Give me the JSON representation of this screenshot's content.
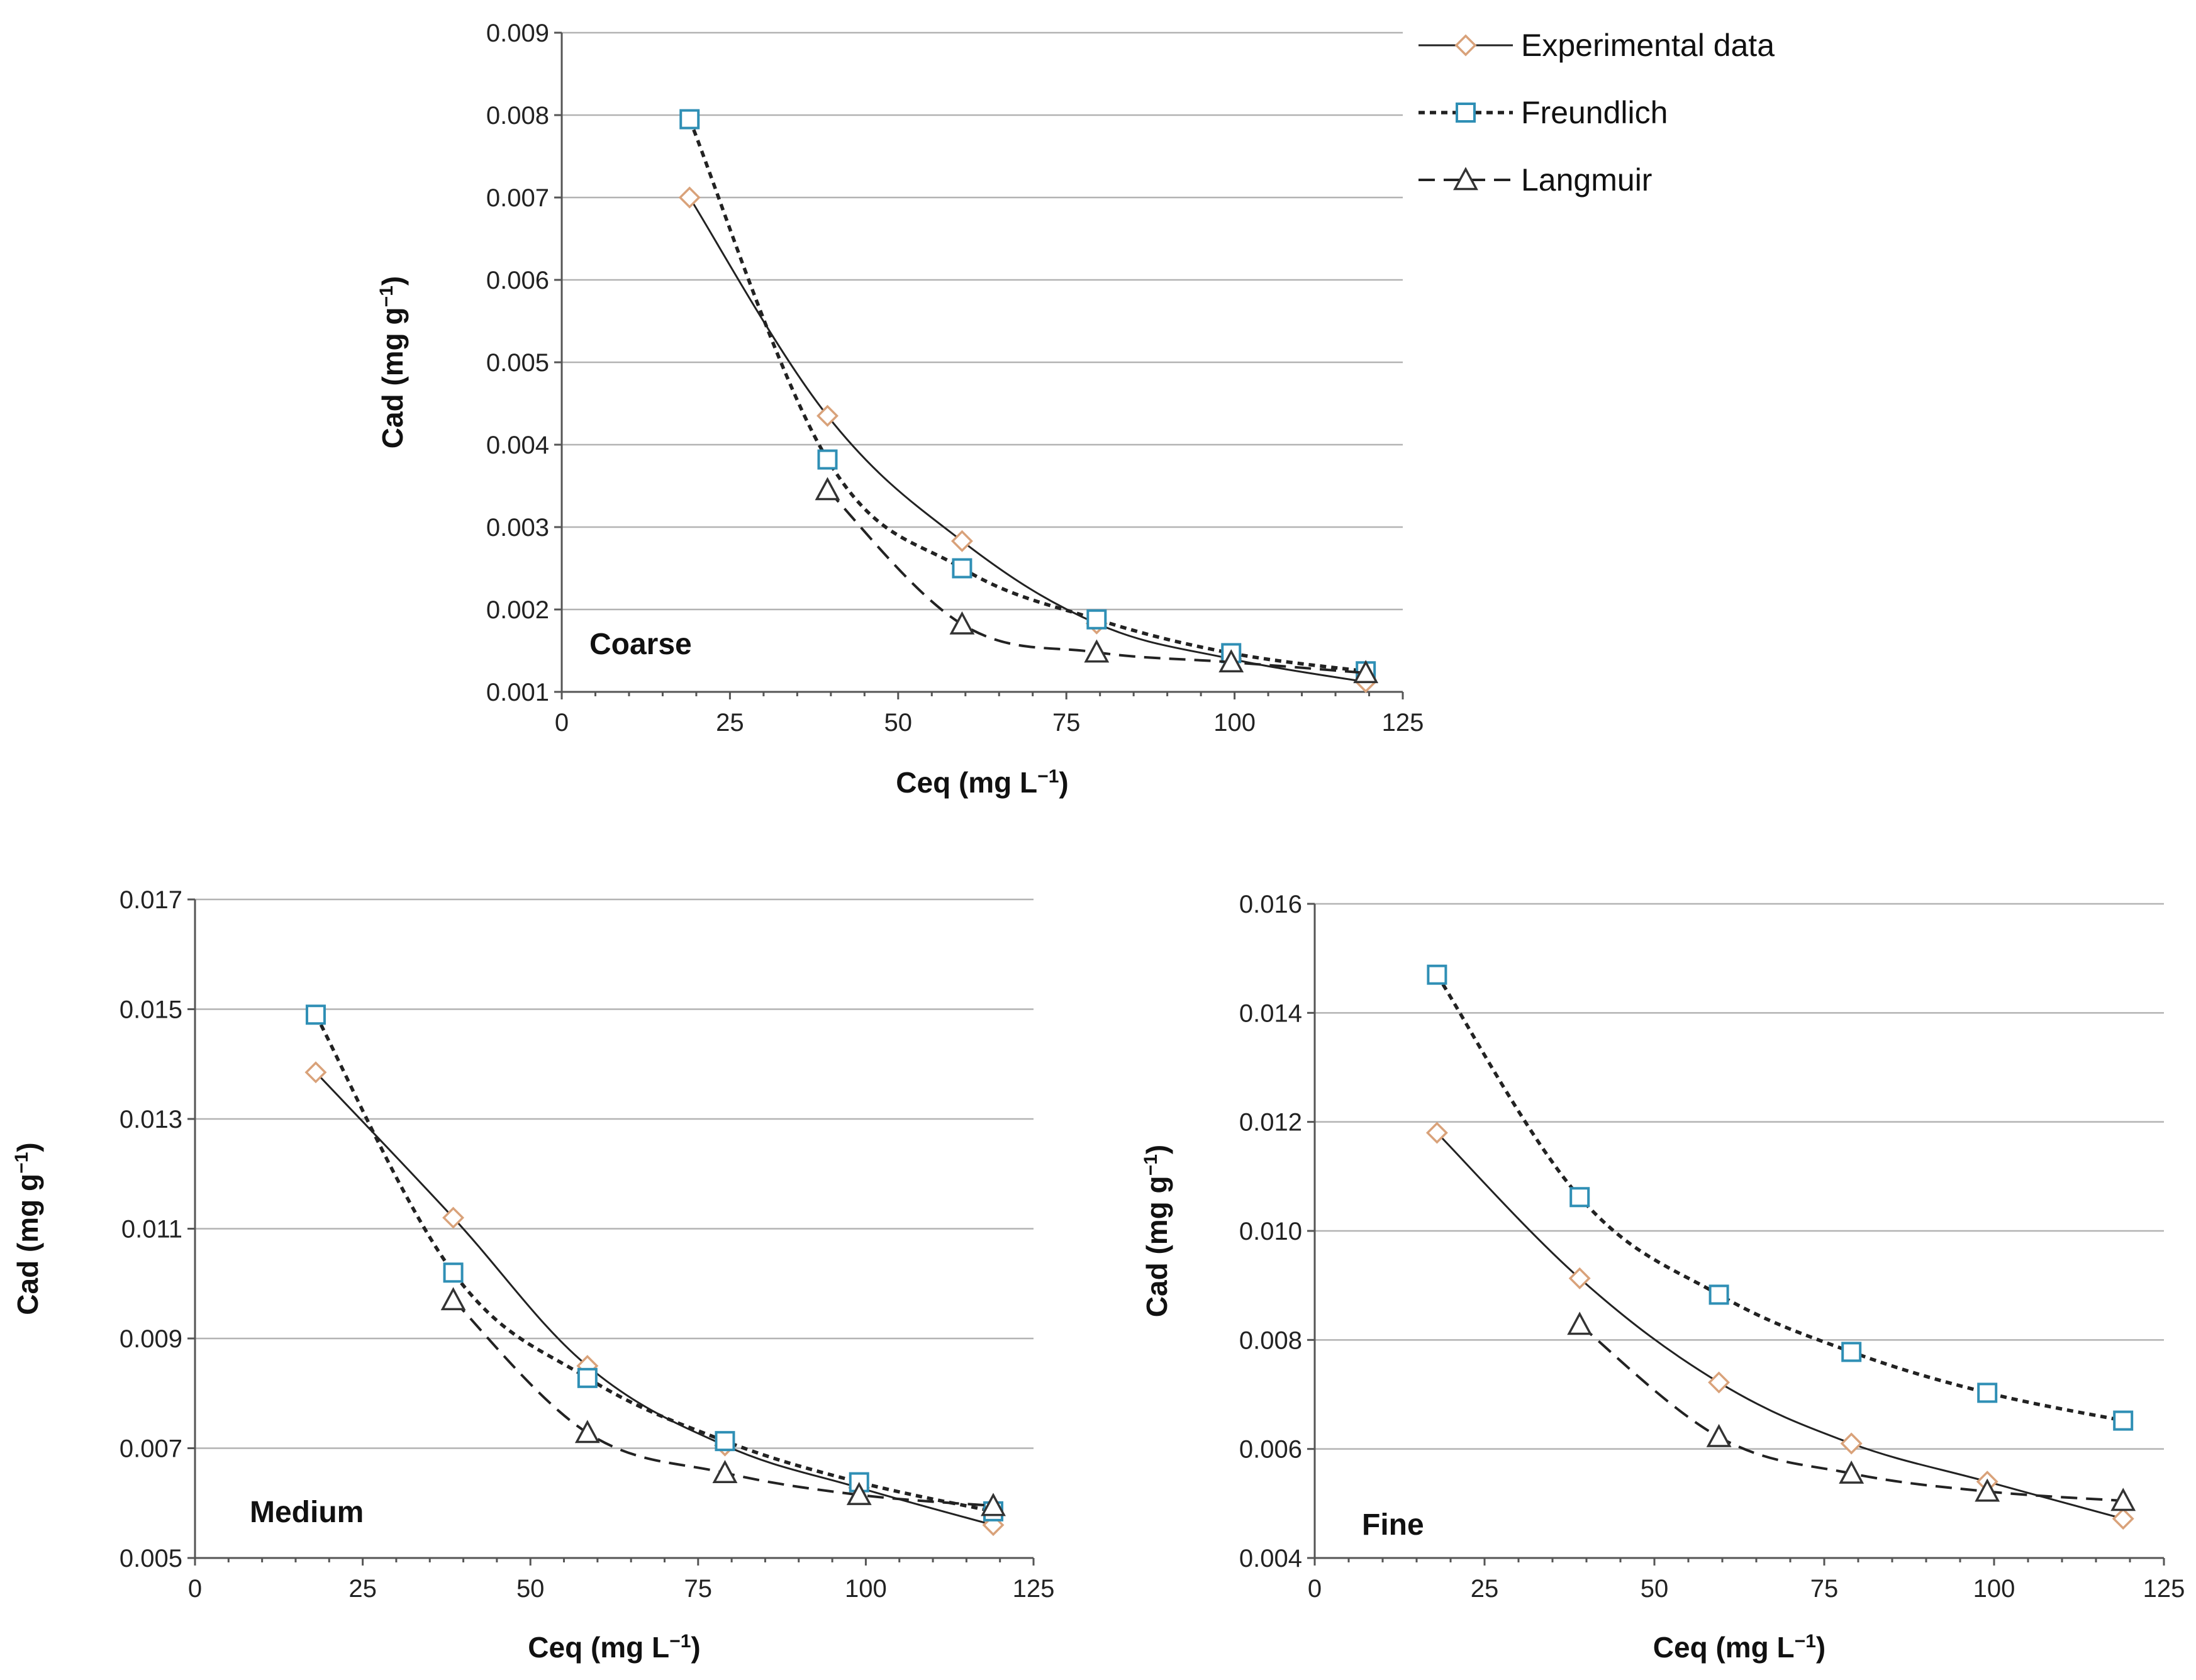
{
  "chart_data": [
    {
      "type": "line",
      "label": "Coarse",
      "xlabel": "Ceq (mg L",
      "ylabel": "Cad (mg g",
      "unit_exponent": "−1",
      "xlim": [
        0,
        125
      ],
      "ylim": [
        0.001,
        0.009
      ],
      "xticks": [
        "0",
        "25",
        "50",
        "75",
        "100",
        "125"
      ],
      "yticks": [
        "0.001",
        "0.002",
        "0.003",
        "0.004",
        "0.005",
        "0.006",
        "0.007",
        "0.008",
        "0.009"
      ],
      "series": [
        {
          "name": "Experimental data",
          "x": [
            19,
            39.5,
            59.5,
            79.5,
            99.5,
            119.5
          ],
          "y": [
            0.007,
            0.00435,
            0.00283,
            0.00183,
            0.0014,
            0.00112
          ]
        },
        {
          "name": "Freundlich",
          "x": [
            19,
            39.5,
            59.5,
            79.5,
            99.5,
            119.5
          ],
          "y": [
            0.00795,
            0.00382,
            0.0025,
            0.00188,
            0.00147,
            0.00125
          ]
        },
        {
          "name": "Langmuir",
          "x": [
            39.5,
            59.5,
            79.5,
            99.5,
            119.5
          ],
          "y": [
            0.00345,
            0.00182,
            0.00148,
            0.00136,
            0.00123
          ]
        }
      ]
    },
    {
      "type": "line",
      "label": "Medium",
      "xlabel": "Ceq (mg L",
      "ylabel": "Cad (mg g",
      "unit_exponent": "−1",
      "xlim": [
        0,
        125
      ],
      "ylim": [
        0.005,
        0.017
      ],
      "xticks": [
        "0",
        "25",
        "50",
        "75",
        "100",
        "125"
      ],
      "yticks": [
        "0.005",
        "0.007",
        "0.009",
        "0.011",
        "0.013",
        "0.015",
        "0.017"
      ],
      "series": [
        {
          "name": "Experimental data",
          "x": [
            18,
            38.5,
            58.5,
            79,
            99,
            119
          ],
          "y": [
            0.01385,
            0.0112,
            0.0085,
            0.00705,
            0.00628,
            0.0056
          ]
        },
        {
          "name": "Freundlich",
          "x": [
            18,
            38.5,
            58.5,
            79,
            99,
            119
          ],
          "y": [
            0.0149,
            0.0102,
            0.00828,
            0.00713,
            0.00638,
            0.00585
          ]
        },
        {
          "name": "Langmuir",
          "x": [
            38.5,
            58.5,
            79,
            99,
            119
          ],
          "y": [
            0.0097,
            0.00728,
            0.00655,
            0.00615,
            0.00595
          ]
        }
      ]
    },
    {
      "type": "line",
      "label": "Fine",
      "xlabel": "Ceq (mg L",
      "ylabel": "Cad (mg g",
      "unit_exponent": "−1",
      "xlim": [
        0,
        125
      ],
      "ylim": [
        0.004,
        0.016
      ],
      "xticks": [
        "0",
        "25",
        "50",
        "75",
        "100",
        "125"
      ],
      "yticks": [
        "0.004",
        "0.006",
        "0.008",
        "0.010",
        "0.012",
        "0.014",
        "0.016"
      ],
      "series": [
        {
          "name": "Experimental data",
          "x": [
            18,
            39,
            59.5,
            79,
            99,
            119
          ],
          "y": [
            0.0118,
            0.00913,
            0.00722,
            0.0061,
            0.0054,
            0.00472
          ]
        },
        {
          "name": "Freundlich",
          "x": [
            18,
            39,
            59.5,
            79,
            99,
            119
          ],
          "y": [
            0.0147,
            0.01062,
            0.00883,
            0.00778,
            0.00703,
            0.00652
          ]
        },
        {
          "name": "Langmuir",
          "x": [
            39,
            59.5,
            79,
            99,
            119
          ],
          "y": [
            0.00828,
            0.00622,
            0.00555,
            0.00522,
            0.00505
          ]
        }
      ]
    }
  ],
  "legend": [
    {
      "name": "Experimental data",
      "marker": "diamond",
      "line": "solid"
    },
    {
      "name": "Freundlich",
      "marker": "square",
      "line": "dotted-bold"
    },
    {
      "name": "Langmuir",
      "marker": "triangle",
      "line": "dashed"
    }
  ],
  "colors": {
    "experimental_marker": "#d9a27a",
    "freundlich_marker": "#2f8fb5",
    "langmuir_marker": "#333333",
    "line": "#222222",
    "grid": "#b3b3b3"
  }
}
